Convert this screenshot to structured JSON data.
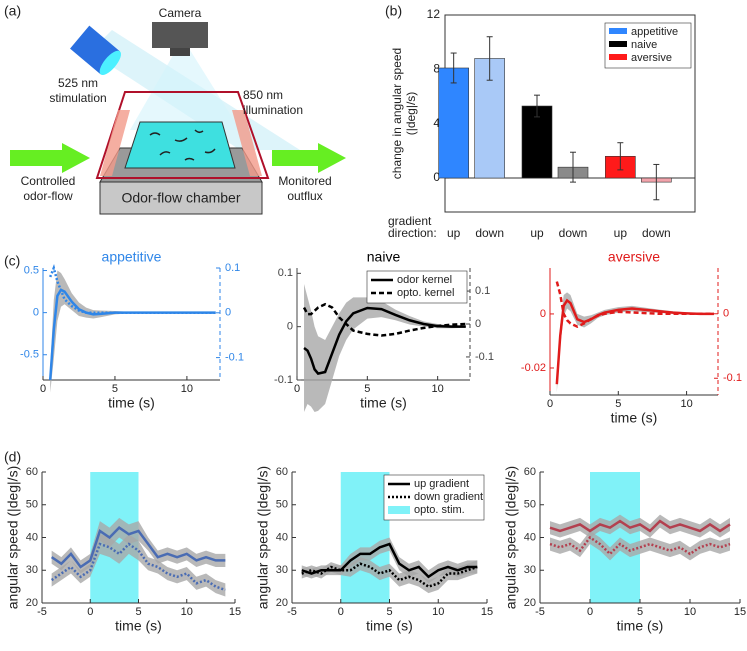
{
  "panel_labels": [
    "(a)",
    "(b)",
    "(c)",
    "(d)"
  ],
  "diagram": {
    "camera": "Camera",
    "stimulation_label": [
      "525 nm",
      "stimulation"
    ],
    "illumination_label": [
      "850 nm",
      "illumination"
    ],
    "inflow_label": [
      "Controlled",
      "odor-flow"
    ],
    "outflow_label": [
      "Monitored",
      "outflux"
    ],
    "chamber_label": "Odor-flow chamber"
  },
  "chart_data": [
    {
      "type": "bar",
      "ylabel": [
        "change in angular speed",
        "(|deg|/s)"
      ],
      "xgroup_label": [
        "gradient",
        "direction:"
      ],
      "categories": [
        "up",
        "down"
      ],
      "ylim": [
        -2.5,
        12
      ],
      "yticks": [
        0,
        4,
        8,
        12
      ],
      "legend": "upper right",
      "series": [
        {
          "name": "appetitive",
          "color": "#2f86ff",
          "light_color": "#a9c9f7",
          "values": [
            8.1,
            8.8
          ],
          "errors": [
            1.1,
            1.6
          ]
        },
        {
          "name": "naive",
          "color": "#000000",
          "light_color": "#8a8a8a",
          "values": [
            5.3,
            0.8
          ],
          "errors": [
            0.8,
            1.1
          ]
        },
        {
          "name": "aversive",
          "color": "#ff1a1a",
          "light_color": "#f2a3ab",
          "values": [
            1.6,
            -0.3
          ],
          "errors": [
            1.0,
            1.3
          ]
        }
      ]
    },
    {
      "type": "line",
      "title": "appetitive",
      "title_color": "#2f86e8",
      "xlabel": "time (s)",
      "x": [
        0.5,
        0.75,
        1,
        1.25,
        1.5,
        2,
        2.5,
        3,
        3.5,
        4,
        5,
        6,
        7,
        8,
        9,
        10,
        11,
        12
      ],
      "xlim": [
        0,
        12.3
      ],
      "xticks": [
        0,
        5,
        10
      ],
      "ylim": [
        -0.8,
        0.53
      ],
      "yticks": [
        -0.5,
        0,
        0.5
      ],
      "y2lim": [
        -0.15,
        0.1
      ],
      "y2ticks": [
        -0.1,
        0,
        0.1
      ],
      "y2_color": "#2f86e8",
      "series": [
        {
          "color": "#2f86e8",
          "dash": "solid",
          "values": [
            -0.8,
            -0.2,
            0.2,
            0.27,
            0.25,
            0.13,
            0.04,
            0,
            -0.02,
            -0.015,
            0,
            0,
            0,
            0,
            0,
            0,
            0,
            0
          ],
          "errors": [
            0.15,
            0.35,
            0.3,
            0.2,
            0.15,
            0.1,
            0.08,
            0.06,
            0.05,
            0.04,
            0.02,
            0.01,
            0.01,
            0.01,
            0.01,
            0.01,
            0.01,
            0.01
          ]
        },
        {
          "color": "#2f86e8",
          "dash": "dotted",
          "axis": "y2",
          "values": [
            0.08,
            0.1,
            0.07,
            0.05,
            0.03,
            0.015,
            0.005,
            0,
            0,
            0,
            0,
            0,
            0,
            0,
            0,
            0,
            0,
            0
          ]
        }
      ]
    },
    {
      "type": "line",
      "title": "naive",
      "title_color": "#000000",
      "xlabel": "time (s)",
      "x": [
        0.5,
        0.75,
        1,
        1.25,
        1.5,
        2,
        2.5,
        3,
        3.5,
        4,
        5,
        6,
        7,
        8,
        9,
        10,
        11,
        12
      ],
      "xlim": [
        0,
        12.3
      ],
      "xticks": [
        0,
        5,
        10
      ],
      "ylim": [
        -0.1,
        0.11
      ],
      "yticks": [
        -0.1,
        0,
        0.1
      ],
      "y2lim": [
        -0.17,
        0.17
      ],
      "y2ticks": [
        -0.1,
        0,
        0.1
      ],
      "y2_color": "#444444",
      "legend": "upper right",
      "series": [
        {
          "name": "odor kernel",
          "color": "#000000",
          "dash": "solid",
          "values": [
            -0.04,
            -0.045,
            -0.06,
            -0.08,
            -0.088,
            -0.085,
            -0.05,
            -0.015,
            0.01,
            0.025,
            0.035,
            0.033,
            0.022,
            0.012,
            0.005,
            0.001,
            0,
            0
          ],
          "errors": [
            0.12,
            0.1,
            0.09,
            0.08,
            0.07,
            0.06,
            0.05,
            0.04,
            0.035,
            0.03,
            0.02,
            0.015,
            0.01,
            0.008,
            0.005,
            0.004,
            0.003,
            0.002
          ]
        },
        {
          "name": "opto. kernel",
          "color": "#000000",
          "dash": "dashed",
          "axis": "y2",
          "values": [
            0.05,
            0.03,
            0.03,
            0.04,
            0.05,
            0.06,
            0.05,
            0.02,
            0,
            -0.02,
            -0.03,
            -0.035,
            -0.03,
            -0.02,
            -0.012,
            -0.006,
            -0.002,
            0
          ]
        }
      ]
    },
    {
      "type": "line",
      "title": "aversive",
      "title_color": "#e01b1b",
      "xlabel": "time (s)",
      "x": [
        0.5,
        0.75,
        1,
        1.25,
        1.5,
        2,
        2.5,
        3,
        3.5,
        4,
        5,
        6,
        7,
        8,
        9,
        10,
        11,
        12
      ],
      "xlim": [
        0,
        12.3
      ],
      "xticks": [
        0,
        5,
        10
      ],
      "ylim": [
        -0.03,
        0.017
      ],
      "yticks": [
        -0.02,
        0
      ],
      "y2lim": [
        -0.126,
        0.071
      ],
      "y2ticks": [
        -0.1,
        0
      ],
      "y2_color": "#e01b1b",
      "series": [
        {
          "color": "#e01b1b",
          "dash": "solid",
          "values": [
            -0.026,
            -0.008,
            0.003,
            0.005,
            0.004,
            -0.002,
            -0.003,
            -0.002,
            -0.0005,
            0.0005,
            0.0015,
            0.002,
            0.0015,
            0.001,
            0.0005,
            0.0002,
            0,
            0
          ],
          "errors": [
            0.003,
            0.004,
            0.004,
            0.003,
            0.003,
            0.002,
            0.002,
            0.0015,
            0.001,
            0.001,
            0.001,
            0.001,
            0.0008,
            0.0006,
            0.0005,
            0.0004,
            0.0003,
            0.0002
          ]
        },
        {
          "color": "#e01b1b",
          "dash": "dashed",
          "axis": "y2",
          "values": [
            0.05,
            0.03,
            0,
            -0.01,
            -0.015,
            -0.02,
            -0.015,
            -0.008,
            -0.003,
            0,
            0.003,
            0.002,
            0.001,
            0,
            0,
            0,
            0,
            0
          ]
        }
      ]
    },
    {
      "type": "line",
      "xlabel": "time (s)",
      "ylabel": "angular speed (|deg|/s)",
      "x": [
        -4,
        -3,
        -2,
        -1,
        0,
        1,
        2,
        3,
        4,
        5,
        6,
        7,
        8,
        9,
        10,
        11,
        12,
        13,
        14
      ],
      "xlim": [
        -5,
        15
      ],
      "xticks": [
        -5,
        0,
        5,
        10,
        15
      ],
      "ylim": [
        20,
        60
      ],
      "yticks": [
        20,
        30,
        40,
        50,
        60
      ],
      "shade": {
        "range": [
          0,
          5
        ],
        "color": "#80f2f8"
      },
      "series": [
        {
          "color": "#4a6cb3",
          "dash": "solid",
          "values": [
            34,
            32,
            35,
            31,
            33,
            42,
            40,
            43,
            41,
            42,
            38,
            34,
            35,
            34,
            35,
            33,
            34,
            33,
            33
          ],
          "errors": [
            2,
            2,
            2,
            2,
            2,
            3,
            3,
            3,
            3,
            3,
            2,
            2,
            2,
            2,
            2,
            2,
            2,
            2,
            2
          ]
        },
        {
          "color": "#4a6cb3",
          "dash": "dotted",
          "values": [
            27,
            29,
            31,
            28,
            30,
            38,
            37,
            35,
            38,
            36,
            32,
            31,
            29,
            28,
            29,
            26,
            27,
            25,
            24
          ],
          "errors": [
            2,
            2,
            2,
            2,
            2,
            3,
            3,
            3,
            3,
            3,
            2,
            2,
            2,
            2,
            2,
            2,
            2,
            2,
            2
          ]
        }
      ]
    },
    {
      "type": "line",
      "xlabel": "time (s)",
      "ylabel": "angular speed (|deg|/s)",
      "x": [
        -4,
        -3,
        -2,
        -1,
        0,
        1,
        2,
        3,
        4,
        5,
        6,
        7,
        8,
        9,
        10,
        11,
        12,
        13,
        14
      ],
      "xlim": [
        -5,
        15
      ],
      "xticks": [
        -5,
        0,
        5,
        10,
        15
      ],
      "ylim": [
        20,
        60
      ],
      "yticks": [
        20,
        30,
        40,
        50,
        60
      ],
      "shade": {
        "range": [
          0,
          5
        ],
        "color": "#80f2f8",
        "name": "opto. stim."
      },
      "legend": "upper right",
      "series": [
        {
          "name": "up gradient",
          "color": "#000000",
          "dash": "solid",
          "values": [
            30,
            29,
            30,
            30,
            30,
            33,
            35,
            35,
            37,
            38,
            32,
            30,
            31,
            28,
            30,
            31,
            30,
            31,
            31
          ],
          "errors": [
            1.5,
            1.5,
            1.5,
            1.5,
            1.5,
            2,
            2,
            2,
            2,
            2,
            2,
            2,
            2,
            2,
            2,
            2,
            2,
            2,
            2
          ]
        },
        {
          "name": "down gradient",
          "color": "#000000",
          "dash": "dotted",
          "values": [
            29,
            30,
            29,
            31,
            30,
            30,
            32,
            31,
            29,
            30,
            27,
            28,
            27,
            25,
            26,
            29,
            29,
            30,
            31
          ],
          "errors": [
            1.5,
            1.5,
            1.5,
            1.5,
            1.5,
            2,
            2,
            2,
            2,
            2,
            2,
            2,
            2,
            2,
            2,
            2,
            2,
            2,
            2
          ]
        }
      ]
    },
    {
      "type": "line",
      "xlabel": "time (s)",
      "ylabel": "angular speed (|deg|/s)",
      "x": [
        -4,
        -3,
        -2,
        -1,
        0,
        1,
        2,
        3,
        4,
        5,
        6,
        7,
        8,
        9,
        10,
        11,
        12,
        13,
        14
      ],
      "xlim": [
        -5,
        15
      ],
      "xticks": [
        -5,
        0,
        5,
        10,
        15
      ],
      "ylim": [
        20,
        60
      ],
      "yticks": [
        20,
        30,
        40,
        50,
        60
      ],
      "shade": {
        "range": [
          0,
          5
        ],
        "color": "#80f2f8"
      },
      "series": [
        {
          "color": "#b3404f",
          "dash": "solid",
          "values": [
            43,
            42,
            43,
            44,
            42,
            44,
            43,
            45,
            43,
            44,
            42,
            45,
            43,
            44,
            43,
            42,
            44,
            42,
            44
          ],
          "errors": [
            2,
            2,
            2,
            2,
            2,
            2,
            2,
            2,
            2,
            2,
            2,
            2,
            2,
            2,
            2,
            2,
            2,
            2,
            2
          ]
        },
        {
          "color": "#b3404f",
          "dash": "dotted",
          "values": [
            38,
            37,
            38,
            36,
            40,
            38,
            35,
            38,
            36,
            37,
            38,
            37,
            36,
            37,
            35,
            37,
            38,
            37,
            38
          ],
          "errors": [
            2,
            2,
            2,
            2,
            2,
            2,
            2,
            2,
            2,
            2,
            2,
            2,
            2,
            2,
            2,
            2,
            2,
            2,
            2
          ]
        }
      ]
    }
  ]
}
